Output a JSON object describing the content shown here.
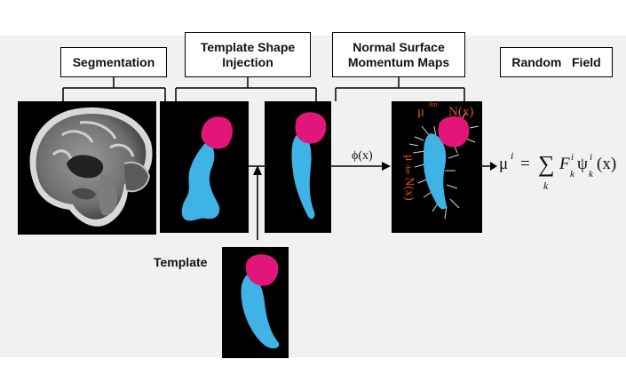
{
  "headers": {
    "segmentation": "Segmentation",
    "template_shape_line1": "Template Shape",
    "template_shape_line2": "Injection",
    "normal_surface_line1": "Normal Surface",
    "normal_surface_line2": "Momentum Maps",
    "random_field": "Random   Field"
  },
  "template_label": "Template",
  "phi_label": "ϕ(x)",
  "momentum_top": "μ",
  "momentum_top_sup": "Am",
  "momentum_top_N": "N(x)",
  "momentum_side": "μ",
  "momentum_side_sup": "Am",
  "momentum_side_N": "N(x)",
  "formula": {
    "lhs": "μ",
    "lhs_sup": "i",
    "eq": "=",
    "sum": "∑",
    "sum_sub": "k",
    "F": "F",
    "F_sub": "k",
    "F_sup": "i",
    "psi": "ψ",
    "psi_sub": "k",
    "psi_sup": "i",
    "arg": "(x)"
  },
  "colors": {
    "structure_blue": "#3fb2e6",
    "structure_pink": "#e2157a",
    "annotation_red": "#e0501c",
    "panel_black": "#000000"
  }
}
